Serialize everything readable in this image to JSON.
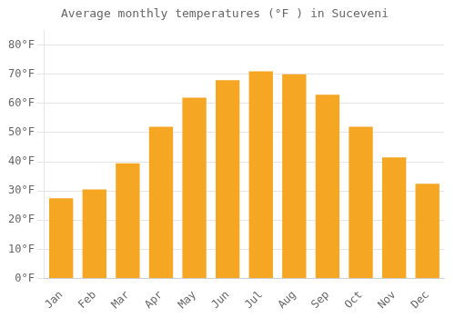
{
  "chart_data": {
    "type": "bar",
    "title": "Average monthly temperatures (°F ) in Suceveni",
    "categories": [
      "Jan",
      "Feb",
      "Mar",
      "Apr",
      "May",
      "Jun",
      "Jul",
      "Aug",
      "Sep",
      "Oct",
      "Nov",
      "Dec"
    ],
    "values": [
      27.5,
      30.5,
      39.5,
      52,
      62,
      68,
      71,
      70,
      63,
      52,
      41.5,
      32.5
    ],
    "color": "#F5A623",
    "ylim": [
      0,
      85
    ],
    "yticks": [
      {
        "value": 0,
        "label": "0°F"
      },
      {
        "value": 10,
        "label": "10°F"
      },
      {
        "value": 20,
        "label": "20°F"
      },
      {
        "value": 30,
        "label": "30°F"
      },
      {
        "value": 40,
        "label": "40°F"
      },
      {
        "value": 50,
        "label": "50°F"
      },
      {
        "value": 60,
        "label": "60°F"
      },
      {
        "value": 70,
        "label": "70°F"
      },
      {
        "value": 80,
        "label": "80°F"
      }
    ],
    "grid": true
  }
}
